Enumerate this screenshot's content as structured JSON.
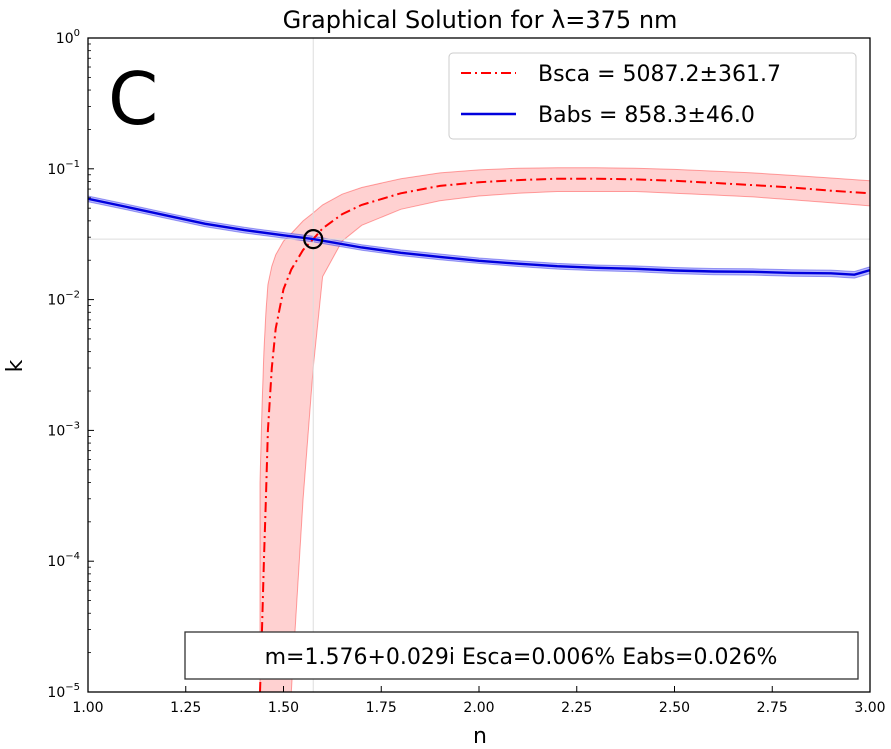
{
  "chart_data": {
    "type": "line",
    "title": "Graphical Solution for λ=375 nm",
    "panel_letter": "C",
    "xlabel": "n",
    "ylabel": "k",
    "xlim": [
      1.0,
      3.0
    ],
    "ylim": [
      1e-05,
      1
    ],
    "yscale": "log",
    "x_ticks": [
      {
        "value": 1.0,
        "label": "1.00"
      },
      {
        "value": 1.25,
        "label": "1.25"
      },
      {
        "value": 1.5,
        "label": "1.50"
      },
      {
        "value": 1.75,
        "label": "1.75"
      },
      {
        "value": 2.0,
        "label": "2.00"
      },
      {
        "value": 2.25,
        "label": "2.25"
      },
      {
        "value": 2.5,
        "label": "2.50"
      },
      {
        "value": 2.75,
        "label": "2.75"
      },
      {
        "value": 3.0,
        "label": "3.00"
      }
    ],
    "y_ticks": [
      {
        "value": 1,
        "base": "10",
        "exp": "0"
      },
      {
        "value": 0.1,
        "base": "10",
        "exp": "−1"
      },
      {
        "value": 0.01,
        "base": "10",
        "exp": "−2"
      },
      {
        "value": 0.001,
        "base": "10",
        "exp": "−3"
      },
      {
        "value": 0.0001,
        "base": "10",
        "exp": "−4"
      },
      {
        "value": 1e-05,
        "base": "10",
        "exp": "−5"
      }
    ],
    "grid": false,
    "legend_position": "top-right",
    "series": [
      {
        "name": "Bsca = 5087.2±361.7",
        "color": "#ff0000",
        "band_color": "#ffb3b3",
        "line_style": "dash-dot",
        "x": [
          1.44,
          1.445,
          1.45,
          1.455,
          1.46,
          1.47,
          1.48,
          1.5,
          1.52,
          1.55,
          1.576,
          1.6,
          1.65,
          1.7,
          1.8,
          1.9,
          2.0,
          2.1,
          2.2,
          2.3,
          2.4,
          2.5,
          2.6,
          2.7,
          2.8,
          2.9,
          3.0
        ],
        "y": [
          1e-05,
          3e-05,
          0.0001,
          0.0003,
          0.001,
          0.003,
          0.006,
          0.012,
          0.017,
          0.024,
          0.029,
          0.035,
          0.045,
          0.053,
          0.065,
          0.074,
          0.079,
          0.082,
          0.084,
          0.084,
          0.083,
          0.081,
          0.078,
          0.075,
          0.072,
          0.068,
          0.065
        ],
        "lower": [
          1e-05,
          1e-05,
          1e-05,
          1e-05,
          1e-05,
          1e-05,
          1e-05,
          1e-05,
          1e-05,
          0.0003,
          0.003,
          0.015,
          0.028,
          0.037,
          0.049,
          0.057,
          0.062,
          0.065,
          0.067,
          0.067,
          0.067,
          0.065,
          0.063,
          0.061,
          0.058,
          0.055,
          0.052
        ],
        "upper": [
          0.0004,
          0.0015,
          0.004,
          0.008,
          0.013,
          0.018,
          0.022,
          0.028,
          0.032,
          0.04,
          0.046,
          0.053,
          0.064,
          0.072,
          0.084,
          0.093,
          0.098,
          0.101,
          0.102,
          0.102,
          0.101,
          0.099,
          0.096,
          0.093,
          0.089,
          0.085,
          0.081
        ]
      },
      {
        "name": "Babs = 858.3±46.0",
        "color": "#0000dd",
        "band_color": "#9a9aff",
        "line_style": "solid",
        "x": [
          1.0,
          1.1,
          1.2,
          1.3,
          1.4,
          1.5,
          1.576,
          1.7,
          1.8,
          1.9,
          2.0,
          2.1,
          2.2,
          2.3,
          2.4,
          2.5,
          2.6,
          2.7,
          2.8,
          2.9,
          2.96,
          3.0
        ],
        "y": [
          0.059,
          0.051,
          0.044,
          0.038,
          0.034,
          0.031,
          0.029,
          0.025,
          0.0228,
          0.0212,
          0.0198,
          0.0188,
          0.018,
          0.0175,
          0.0172,
          0.0167,
          0.0164,
          0.0163,
          0.016,
          0.0159,
          0.0155,
          0.0168
        ],
        "lower": [
          0.056,
          0.0485,
          0.0418,
          0.0361,
          0.0323,
          0.0295,
          0.0276,
          0.0238,
          0.0217,
          0.0202,
          0.0189,
          0.0179,
          0.0171,
          0.0166,
          0.0163,
          0.0158,
          0.0155,
          0.0154,
          0.0151,
          0.015,
          0.0146,
          0.0158
        ],
        "upper": [
          0.062,
          0.0535,
          0.0462,
          0.0399,
          0.0357,
          0.0326,
          0.0305,
          0.0263,
          0.024,
          0.0223,
          0.0208,
          0.0198,
          0.0189,
          0.0184,
          0.0181,
          0.0176,
          0.0173,
          0.0172,
          0.0169,
          0.0168,
          0.0164,
          0.0178
        ]
      }
    ],
    "crosshair": {
      "n": 1.576,
      "k": 0.029,
      "line_color": "#dddddd"
    },
    "solution_marker": {
      "n": 1.576,
      "k": 0.029
    },
    "annotation": "m=1.576+0.029i Esca=0.006% Eabs=0.026%"
  }
}
